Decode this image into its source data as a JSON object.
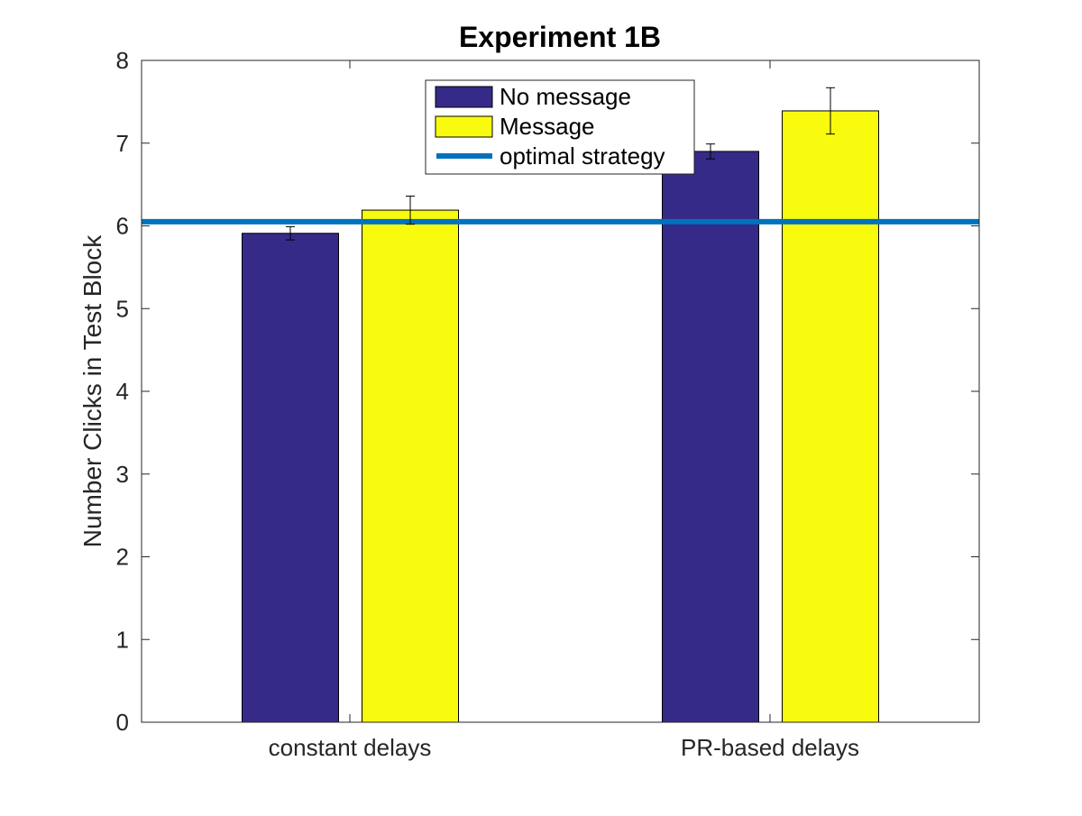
{
  "chart_data": {
    "type": "bar",
    "title": "Experiment 1B",
    "xlabel": "",
    "ylabel": "Number Clicks in Test Block",
    "categories": [
      "constant delays",
      "PR-based delays"
    ],
    "series": [
      {
        "name": "No message",
        "color": "#352a87",
        "values": [
          5.91,
          6.9
        ],
        "errors": [
          0.08,
          0.09
        ]
      },
      {
        "name": "Message",
        "color": "#f9fb0e",
        "values": [
          6.19,
          7.39
        ],
        "errors": [
          0.17,
          0.28
        ]
      }
    ],
    "reference_lines": [
      {
        "name": "optimal strategy",
        "value": 6.05,
        "color": "#0072bd"
      }
    ],
    "ylim": [
      0,
      8
    ],
    "yticks": [
      0,
      1,
      2,
      3,
      4,
      5,
      6,
      7,
      8
    ],
    "grid": false,
    "legend_position": "top-center"
  }
}
